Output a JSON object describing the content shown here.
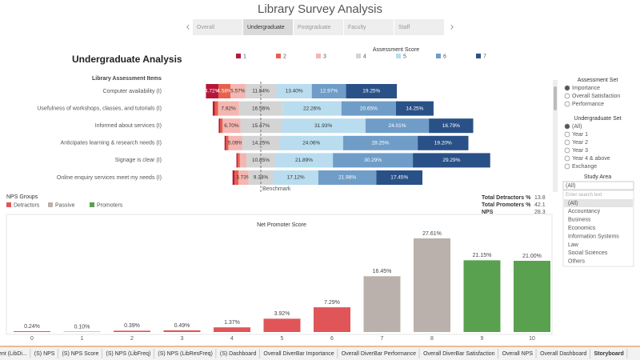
{
  "title": "Library Survey Analysis",
  "tabs": {
    "items": [
      "Overall",
      "Undergraduate",
      "Postgraduate",
      "Faculty",
      "Staff"
    ],
    "active": 1
  },
  "chart_data": [
    {
      "type": "diverging-bar",
      "title": "Undergraduate Analysis",
      "legend_title": "Assessment Score",
      "row_header": "Library Assessment Items",
      "benchmark_label": "Benchmark",
      "categories": [
        "Computer availability (I)",
        "Usefulness of workshops, classes, and tutorials (I)",
        "Informed about services (I)",
        "Anticipates learning & research needs (I)",
        "Signage is clear (I)",
        "Online enquiry services meet my needs (I)"
      ],
      "series": [
        {
          "name": "1",
          "color": "#b5173a",
          "values": [
            4.72,
            0.8,
            0.6,
            0.6,
            0.5,
            0.8
          ],
          "value_labels": [
            "4.72%",
            null,
            null,
            null,
            null,
            null
          ]
        },
        {
          "name": "2",
          "color": "#e8604c",
          "values": [
            4.58,
            1.2,
            0.9,
            0.9,
            0.8,
            1.5
          ],
          "value_labels": [
            "4.58%",
            null,
            null,
            null,
            null,
            null
          ]
        },
        {
          "name": "3",
          "color": "#f4b6b0",
          "values": [
            5.57,
            7.92,
            6.7,
            5.09,
            2.5,
            3.73
          ],
          "value_labels": [
            "5.57%",
            "7.92%",
            "6.70%",
            "5.09%",
            null,
            "3.73%"
          ]
        },
        {
          "name": "4",
          "color": "#d4d4d4",
          "values": [
            11.84,
            16.56,
            15.47,
            14.25,
            10.85,
            9.34
          ],
          "value_labels": [
            "11.84%",
            "16.56%",
            "15.47%",
            "14.25%",
            "10.85%",
            "9.34%"
          ]
        },
        {
          "name": "5",
          "color": "#b9dcef",
          "values": [
            13.4,
            22.26,
            31.93,
            24.06,
            21.89,
            17.12
          ],
          "value_labels": [
            "13.40%",
            "22.26%",
            "31.93%",
            "24.06%",
            "21.89%",
            "17.12%"
          ]
        },
        {
          "name": "6",
          "color": "#6f9dc8",
          "values": [
            12.97,
            20.65,
            24.01,
            28.25,
            30.29,
            21.98
          ],
          "value_labels": [
            "12.97%",
            "20.65%",
            "24.01%",
            "28.25%",
            "30.29%",
            "21.98%"
          ]
        },
        {
          "name": "7",
          "color": "#2a5187",
          "values": [
            19.25,
            14.25,
            16.79,
            19.2,
            29.29,
            17.45
          ],
          "value_labels": [
            "19.25%",
            "14.25%",
            "16.79%",
            "19.20%",
            "29.29%",
            "17.45%"
          ]
        }
      ]
    },
    {
      "type": "bar",
      "title": "Net Promoter Score",
      "legend_title": "NPS Groups",
      "legend": [
        {
          "name": "Detractors",
          "color": "#e05558"
        },
        {
          "name": "Passive",
          "color": "#bab0ac"
        },
        {
          "name": "Promoters",
          "color": "#59a14f"
        }
      ],
      "categories": [
        "0",
        "1",
        "2",
        "3",
        "4",
        "5",
        "6",
        "7",
        "8",
        "9",
        "10"
      ],
      "values": [
        0.24,
        0.1,
        0.39,
        0.49,
        1.37,
        3.92,
        7.29,
        16.45,
        27.61,
        21.15,
        21.0
      ],
      "value_labels": [
        "0.24%",
        "0.10%",
        "0.39%",
        "0.49%",
        "1.37%",
        "3.92%",
        "7.29%",
        "16.45%",
        "27.61%",
        "21.15%",
        "21.00%"
      ],
      "groups": [
        0,
        0,
        0,
        0,
        0,
        0,
        0,
        1,
        1,
        2,
        2
      ]
    }
  ],
  "filters": [
    {
      "title": "Assessment Set",
      "options": [
        "Importance",
        "Overall Satisfaction",
        "Performance"
      ],
      "selected": 0
    },
    {
      "title": "Undergraduate Set",
      "options": [
        "(All)",
        "Year 1",
        "Year 2",
        "Year 3",
        "Year 4 & above",
        "Exchange"
      ],
      "selected": 0
    },
    {
      "title": "Study Area",
      "value": "(All)",
      "search_placeholder": "Enter search text",
      "options": [
        "(All)",
        "Accountancy",
        "Business",
        "Economics",
        "Information Systems",
        "Law",
        "Social Sciences",
        "Others"
      ],
      "selected": 0
    }
  ],
  "summary": {
    "rows": [
      [
        "Total Detractors %",
        13.8
      ],
      [
        "Total Promoters %",
        42.1
      ],
      [
        "NPS",
        28.3
      ]
    ]
  },
  "sheet_tabs": {
    "items": [
      "ent (LibDi...",
      "(S) NPS",
      "(S) NPS Score",
      "(S) NPS (LibFreq)",
      "(S) NPS (LibResFreq)",
      "(S) Dashboard",
      "Overall DiverBar Importance",
      "Overall DiverBar Performance",
      "Overall DiverBar Satisfaction",
      "Overall NPS",
      "Overall Dashboard",
      "Storyboard"
    ],
    "active": 11
  }
}
